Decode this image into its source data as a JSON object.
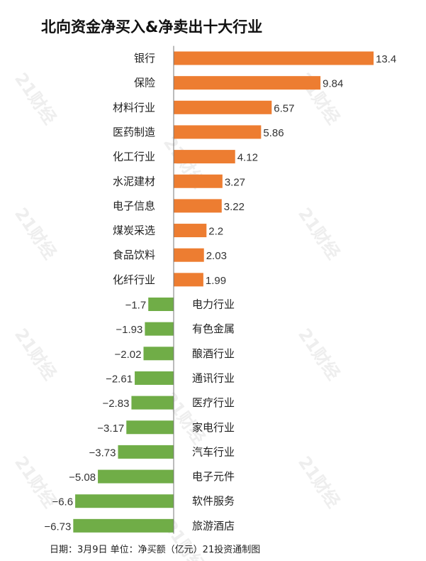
{
  "chart_data": {
    "type": "bar",
    "orientation": "horizontal",
    "title": "北向资金净买入&净卖出十大行业",
    "footer": "日期：3月9日 单位：净买额（亿元）21投资通制图",
    "categories": [
      "银行",
      "保险",
      "材料行业",
      "医药制造",
      "化工行业",
      "水泥建材",
      "电子信息",
      "煤炭采选",
      "食品饮料",
      "化纤行业",
      "电力行业",
      "有色金属",
      "酿酒行业",
      "通讯行业",
      "医疗行业",
      "家电行业",
      "汽车行业",
      "电子元件",
      "软件服务",
      "旅游酒店"
    ],
    "values": [
      13.4,
      9.84,
      6.57,
      5.86,
      4.12,
      3.27,
      3.22,
      2.2,
      2.03,
      1.99,
      -1.7,
      -1.93,
      -2.02,
      -2.61,
      -2.83,
      -3.17,
      -3.73,
      -5.08,
      -6.6,
      -6.73
    ],
    "value_labels": [
      "13.4",
      "9.84",
      "6.57",
      "5.86",
      "4.12",
      "3.27",
      "3.22",
      "2.2",
      "2.03",
      "1.99",
      "−1.7",
      "−1.93",
      "−2.02",
      "−2.61",
      "−2.83",
      "−3.17",
      "−3.73",
      "−5.08",
      "−6.6",
      "−6.73"
    ],
    "colors": {
      "positive": "#ed7d31",
      "negative": "#70ad47"
    },
    "grid": false,
    "legend": "none",
    "watermark": "21财经"
  }
}
